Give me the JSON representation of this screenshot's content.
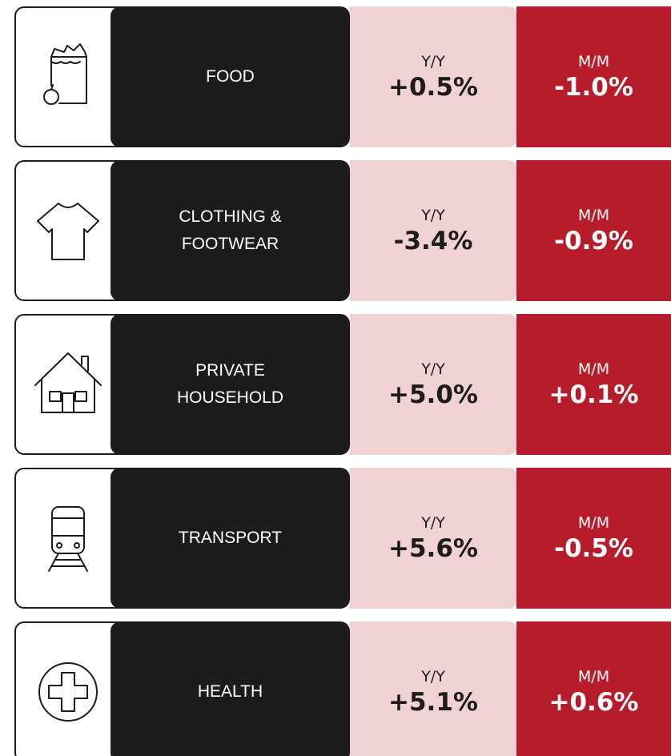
{
  "rows": [
    {
      "label": [
        "FOOD"
      ],
      "yy_heading": "Y/Y",
      "yy": "+0.5%",
      "mm_heading": "M/M",
      "mm": "-1.0%"
    },
    {
      "label": [
        "CLOTHING &",
        "FOOTWEAR"
      ],
      "yy_heading": "Y/Y",
      "yy": "-3.4%",
      "mm_heading": "M/M",
      "mm": "-0.9%"
    },
    {
      "label": [
        "PRIVATE",
        "HOUSEHOLD"
      ],
      "yy_heading": "Y/Y",
      "yy": "+5.0%",
      "mm_heading": "M/M",
      "mm": "+0.1%"
    },
    {
      "label": [
        "TRANSPORT"
      ],
      "yy_heading": "Y/Y",
      "yy": "+5.6%",
      "mm_heading": "M/M",
      "mm": "-0.5%"
    },
    {
      "label": [
        "HEALTH"
      ],
      "yy_heading": "Y/Y",
      "yy": "+5.1%",
      "mm_heading": "M/M",
      "mm": "+0.6%"
    }
  ]
}
